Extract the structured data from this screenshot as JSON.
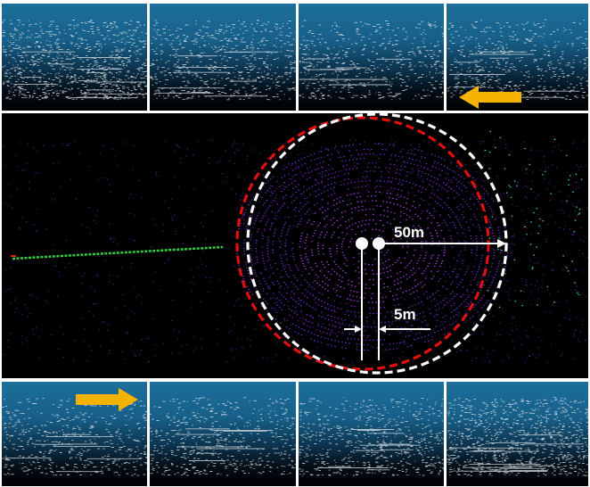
{
  "figure": {
    "labels": {
      "radius": "50m",
      "offset": "5m"
    },
    "colors": {
      "arrow": "#f5b300",
      "outer_circle": "#ffffff",
      "inner_circle": "#e01010",
      "trajectory": "#30d040",
      "sky": "#1d6f9c",
      "points_thumb": "#dfe6ea",
      "points_main": "#8a2be2"
    },
    "top_row": {
      "arrow_direction": "left",
      "arrow_icon": "arrow-left-icon",
      "frames": 4
    },
    "bottom_row": {
      "arrow_direction": "right",
      "arrow_icon": "arrow-right-icon",
      "frames": 4
    }
  }
}
